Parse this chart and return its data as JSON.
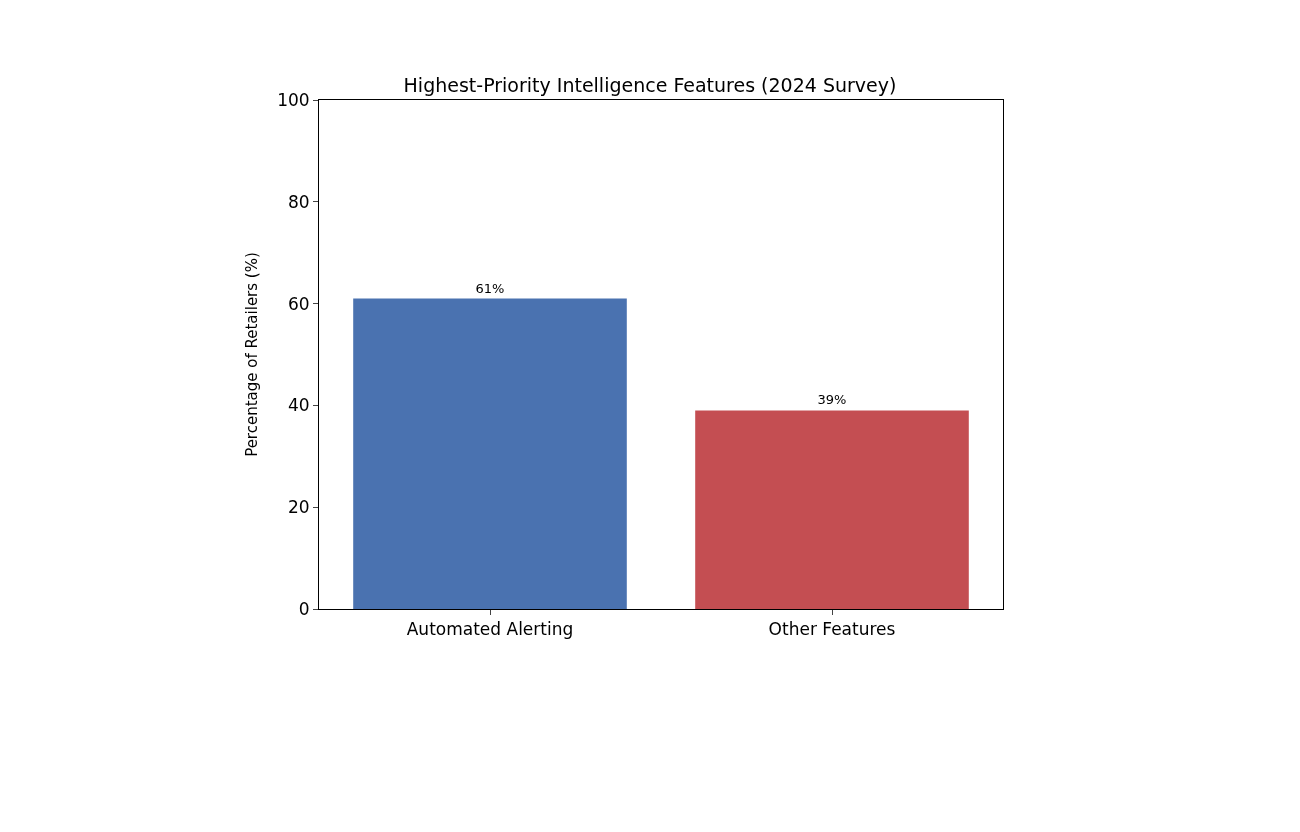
{
  "chart_data": {
    "type": "bar",
    "title": "Highest-Priority Intelligence Features (2024 Survey)",
    "ylabel": "Percentage of Retailers (%)",
    "categories": [
      "Automated Alerting",
      "Other Features"
    ],
    "values": [
      61,
      39
    ],
    "colors": [
      "#4a72b0",
      "#c44e52"
    ],
    "value_labels": [
      "61%",
      "39%"
    ],
    "ylim": [
      0,
      100
    ],
    "yticks": [
      0,
      20,
      40,
      60,
      80,
      100
    ],
    "legend": false
  }
}
